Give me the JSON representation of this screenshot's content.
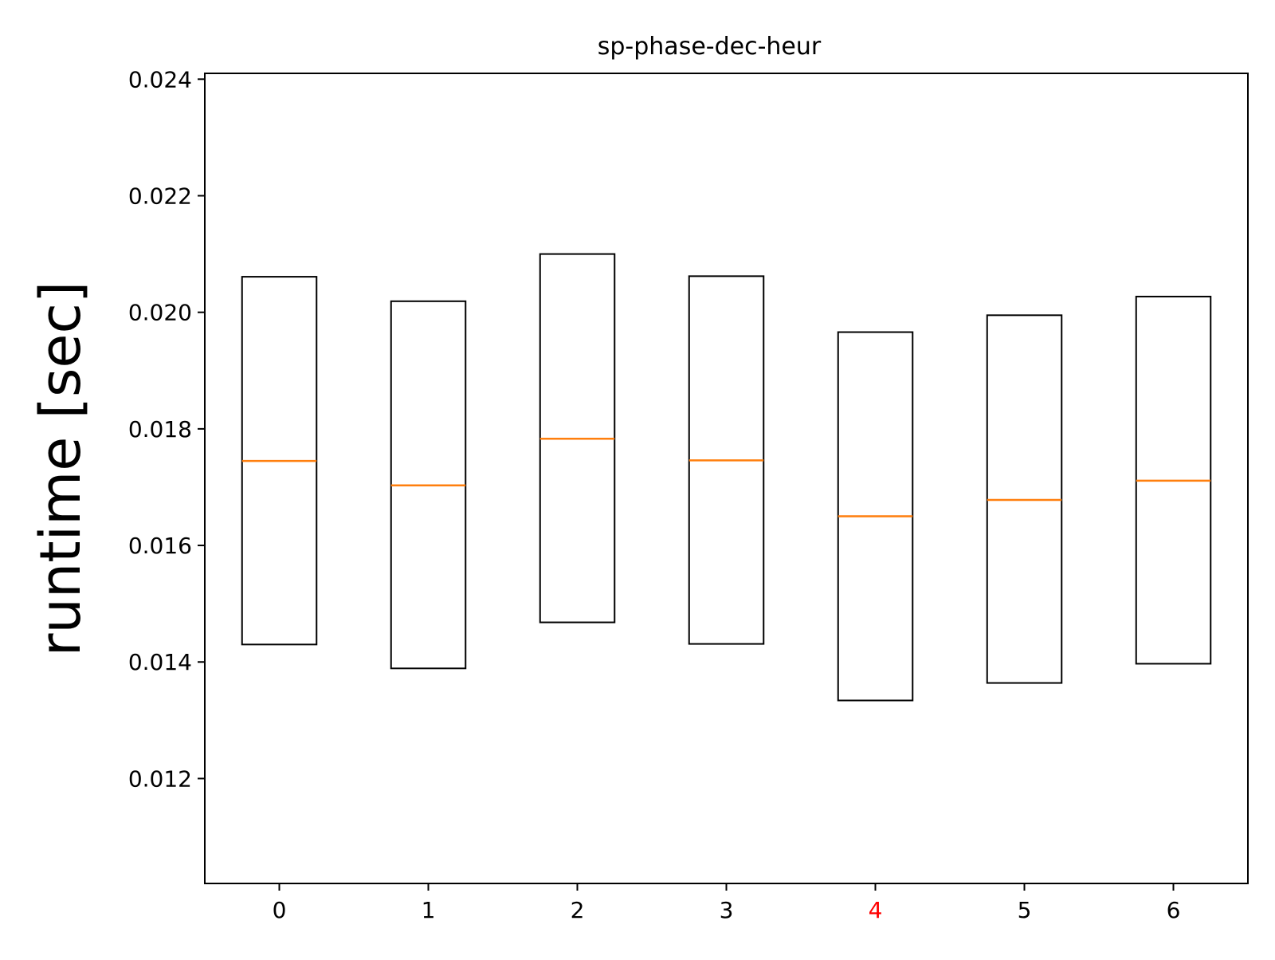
{
  "chart_data": {
    "type": "box",
    "title": "sp-phase-dec-heur",
    "xlabel": "",
    "ylabel": "runtime [sec]",
    "categories": [
      "0",
      "1",
      "2",
      "3",
      "4",
      "5",
      "6"
    ],
    "highlight_category": "4",
    "highlight_color": "#ff0000",
    "ylim": [
      0.0102,
      0.0241
    ],
    "yticks": [
      "0.012",
      "0.014",
      "0.016",
      "0.018",
      "0.020",
      "0.022",
      "0.024"
    ],
    "boxes": [
      {
        "category": "0",
        "q1": 0.0143,
        "median": 0.01745,
        "q3": 0.02061
      },
      {
        "category": "1",
        "q1": 0.01389,
        "median": 0.01703,
        "q3": 0.02019
      },
      {
        "category": "2",
        "q1": 0.01468,
        "median": 0.01783,
        "q3": 0.021
      },
      {
        "category": "3",
        "q1": 0.01431,
        "median": 0.01746,
        "q3": 0.02062
      },
      {
        "category": "4",
        "q1": 0.01334,
        "median": 0.0165,
        "q3": 0.01966
      },
      {
        "category": "5",
        "q1": 0.01364,
        "median": 0.01678,
        "q3": 0.01995
      },
      {
        "category": "6",
        "q1": 0.01397,
        "median": 0.01711,
        "q3": 0.02027
      }
    ],
    "box_color": "#000000",
    "median_color": "#ff7f0e",
    "grid": false,
    "legend": "none"
  }
}
